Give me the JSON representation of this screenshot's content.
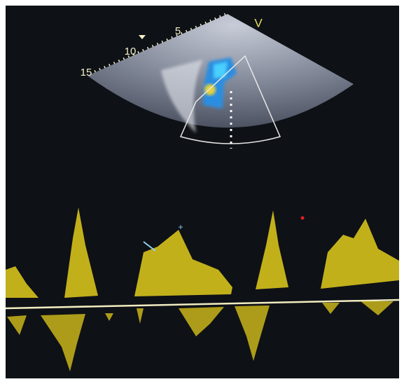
{
  "depth_scale": {
    "labels": [
      "15",
      "10",
      "5"
    ]
  },
  "probe_marker": "V"
}
